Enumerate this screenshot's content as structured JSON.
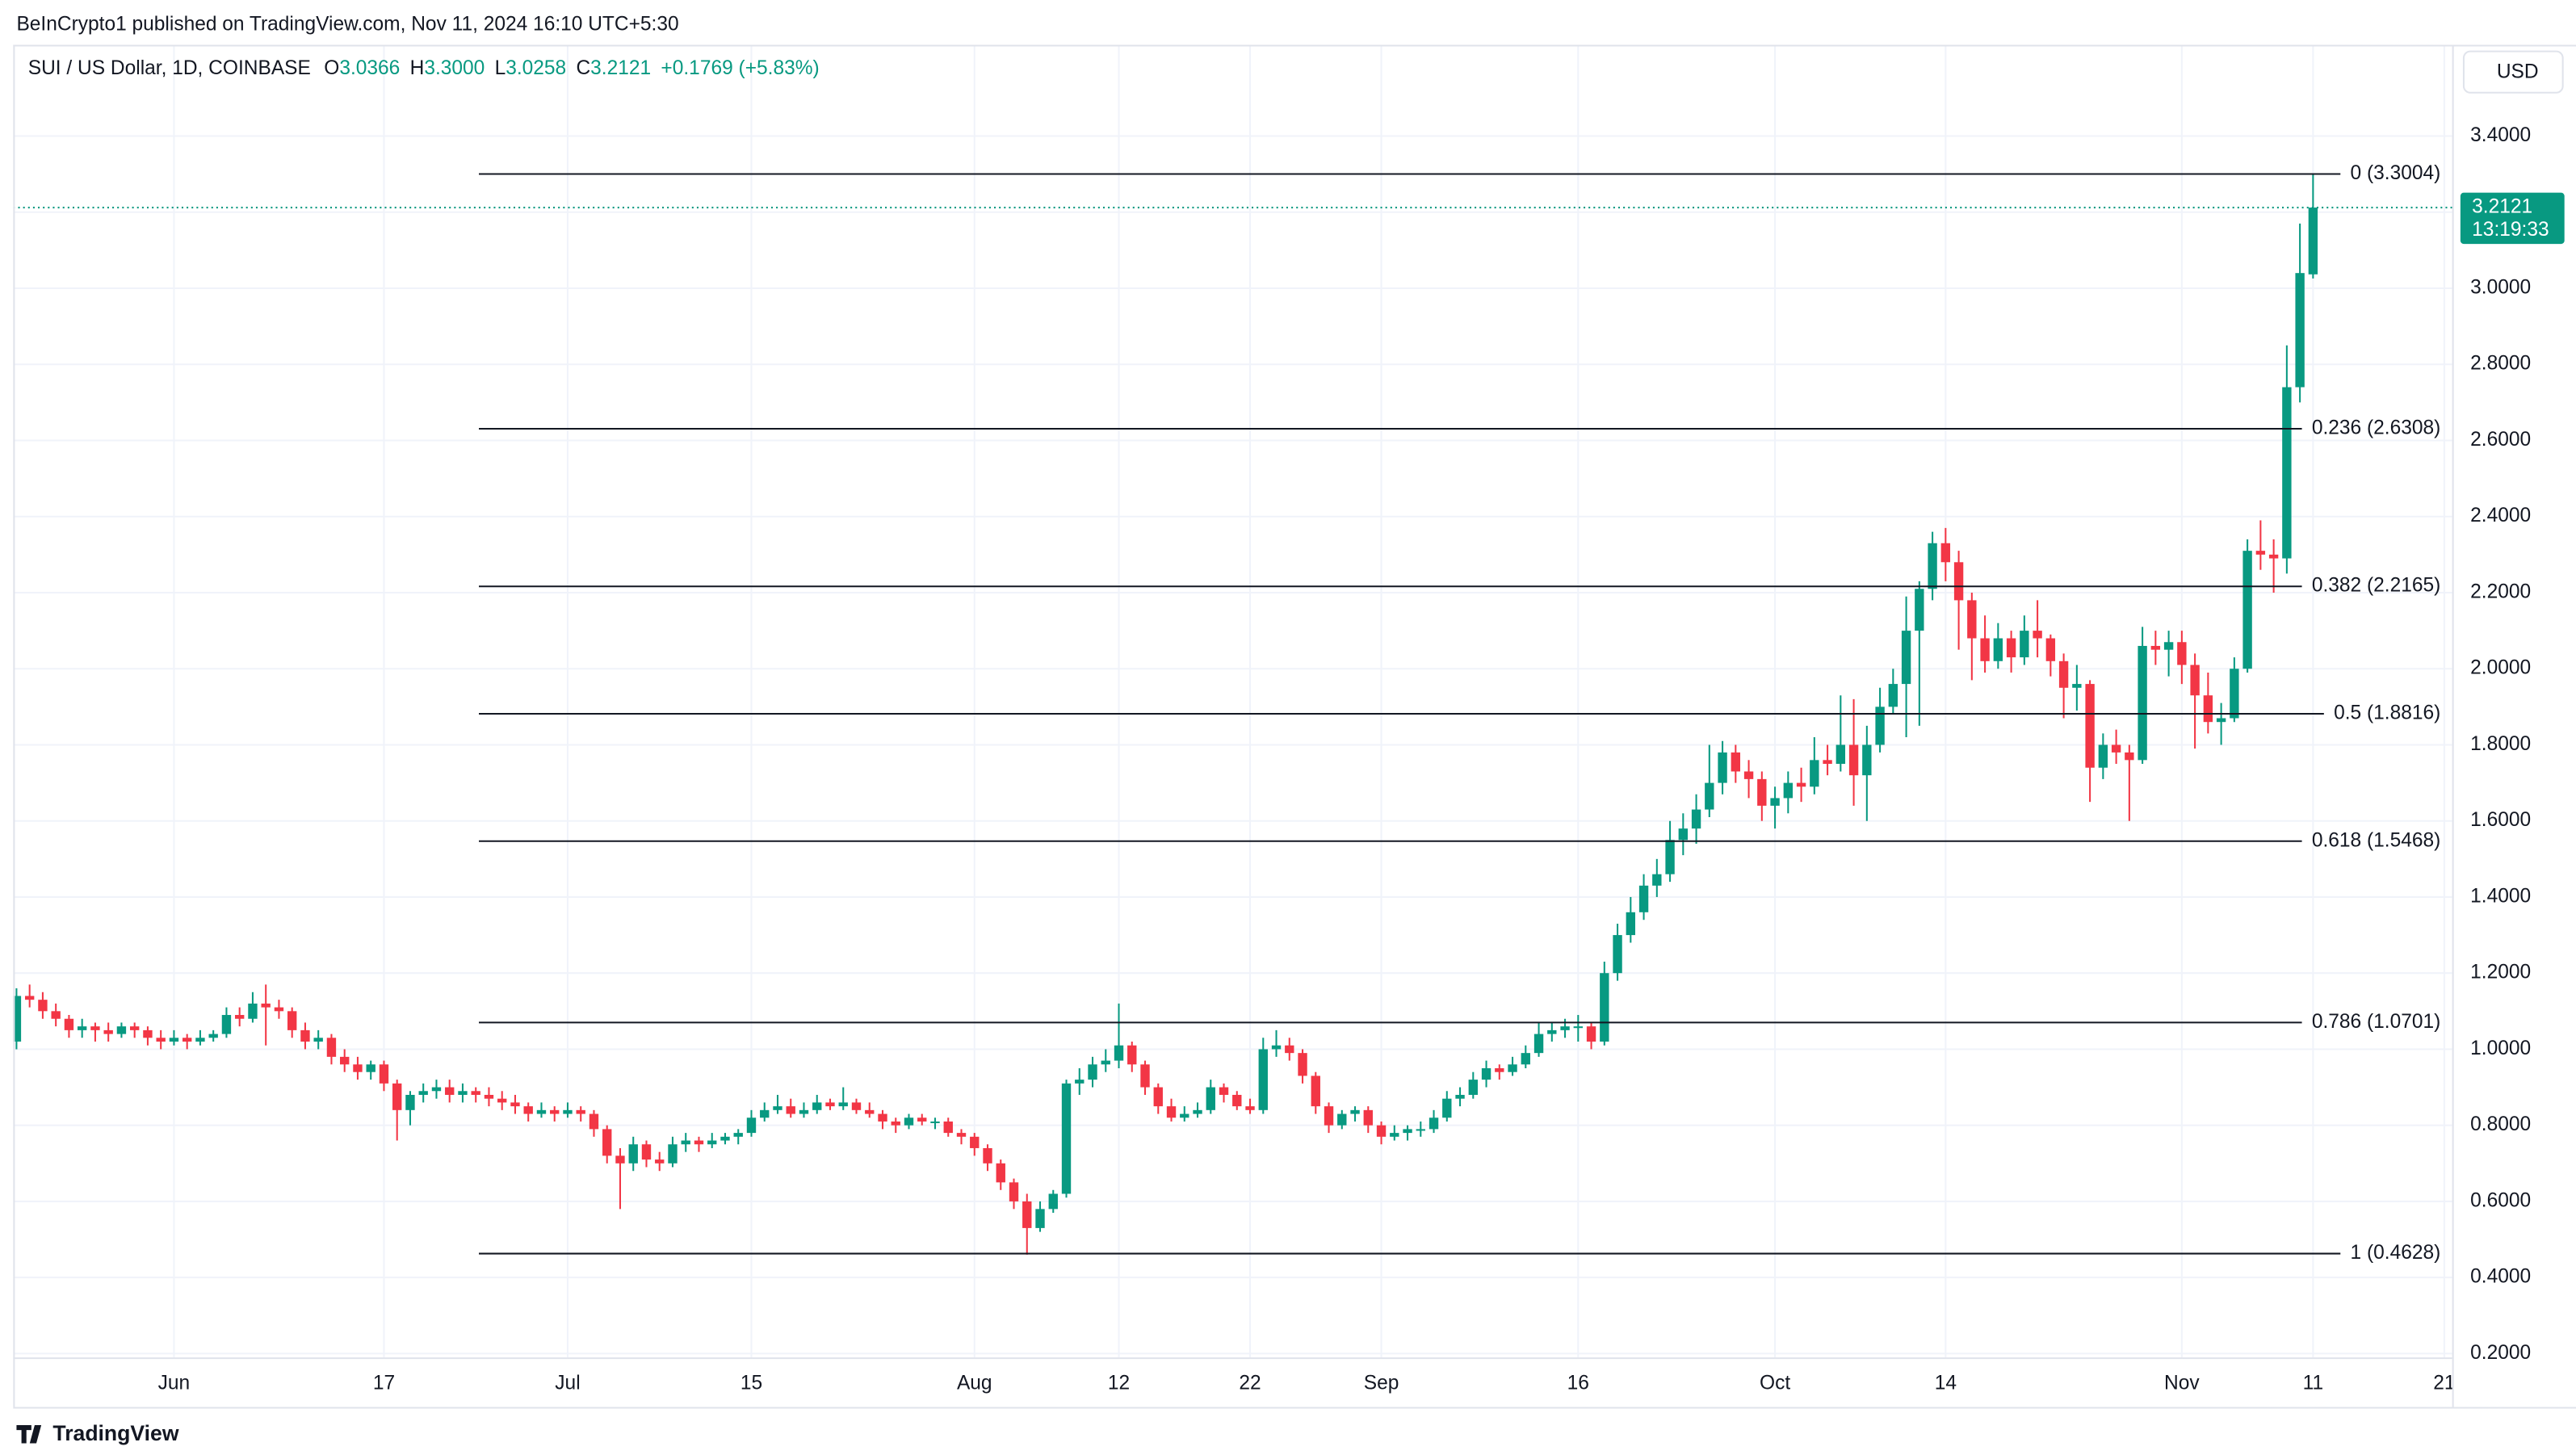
{
  "published": "BeInCrypto1 published on TradingView.com, Nov 11, 2024 16:10 UTC+5:30",
  "brand": "TradingView",
  "chart_data": {
    "type": "candlestick",
    "symbol": "SUI / US Dollar, 1D, COINBASE",
    "ohlc": [
      {
        "key": "O",
        "value": "3.0366"
      },
      {
        "key": "H",
        "value": "3.3000"
      },
      {
        "key": "L",
        "value": "3.0258"
      },
      {
        "key": "C",
        "value": "3.2121"
      }
    ],
    "change": "+0.1769 (+5.83%)",
    "currency": "USD",
    "last_price": {
      "value": 3.2121,
      "label": "3.2121"
    },
    "countdown": "13:19:33",
    "up_color": "#089981",
    "down_color": "#f23645",
    "grid": true,
    "xlim": [
      -0.25,
      185.6
    ],
    "xticks": [
      {
        "value": 12,
        "label": "Jun"
      },
      {
        "value": 28,
        "label": "17"
      },
      {
        "value": 42,
        "label": "Jul"
      },
      {
        "value": 56,
        "label": "15"
      },
      {
        "value": 73,
        "label": "Aug"
      },
      {
        "value": 84,
        "label": "12"
      },
      {
        "value": 94,
        "label": "22"
      },
      {
        "value": 104,
        "label": "Sep"
      },
      {
        "value": 119,
        "label": "16"
      },
      {
        "value": 134,
        "label": "Oct"
      },
      {
        "value": 147,
        "label": "14"
      },
      {
        "value": 165,
        "label": "Nov"
      },
      {
        "value": 175,
        "label": "11"
      },
      {
        "value": 185,
        "label": "21"
      }
    ],
    "ylim": [
      0.19,
      3.64
    ],
    "yticks": [
      {
        "value": 3.4,
        "label": "3.4000"
      },
      {
        "value": 3.2,
        "label": "3.2000"
      },
      {
        "value": 3.0,
        "label": "3.0000"
      },
      {
        "value": 2.8,
        "label": "2.8000"
      },
      {
        "value": 2.6,
        "label": "2.6000"
      },
      {
        "value": 2.4,
        "label": "2.4000"
      },
      {
        "value": 2.2,
        "label": "2.2000"
      },
      {
        "value": 2.0,
        "label": "2.0000"
      },
      {
        "value": 1.8,
        "label": "1.8000"
      },
      {
        "value": 1.6,
        "label": "1.6000"
      },
      {
        "value": 1.4,
        "label": "1.4000"
      },
      {
        "value": 1.2,
        "label": "1.2000"
      },
      {
        "value": 1.0,
        "label": "1.0000"
      },
      {
        "value": 0.8,
        "label": "0.8000"
      },
      {
        "value": 0.6,
        "label": "0.6000"
      },
      {
        "value": 0.4,
        "label": "0.4000"
      },
      {
        "value": 0.2,
        "label": "0.2000"
      }
    ],
    "fib_levels": [
      {
        "value": 3.3004,
        "label": "0 (3.3004)"
      },
      {
        "value": 2.6308,
        "label": "0.236 (2.6308)"
      },
      {
        "value": 2.2165,
        "label": "0.382 (2.2165)"
      },
      {
        "value": 1.8816,
        "label": "0.5 (1.8816)"
      },
      {
        "value": 1.5468,
        "label": "0.618 (1.5468)"
      },
      {
        "value": 1.0701,
        "label": "0.786 (1.0701)"
      },
      {
        "value": 0.4628,
        "label": "1 (0.4628)"
      }
    ],
    "candles": [
      [
        1.02,
        1.16,
        1.0,
        1.14
      ],
      [
        1.14,
        1.17,
        1.11,
        1.13
      ],
      [
        1.13,
        1.15,
        1.08,
        1.1
      ],
      [
        1.1,
        1.12,
        1.06,
        1.08
      ],
      [
        1.08,
        1.09,
        1.03,
        1.05
      ],
      [
        1.05,
        1.08,
        1.03,
        1.06
      ],
      [
        1.06,
        1.07,
        1.02,
        1.05
      ],
      [
        1.05,
        1.07,
        1.02,
        1.04
      ],
      [
        1.04,
        1.07,
        1.03,
        1.06
      ],
      [
        1.06,
        1.07,
        1.03,
        1.05
      ],
      [
        1.05,
        1.06,
        1.01,
        1.03
      ],
      [
        1.03,
        1.05,
        1.0,
        1.02
      ],
      [
        1.02,
        1.05,
        1.01,
        1.03
      ],
      [
        1.03,
        1.04,
        1.0,
        1.02
      ],
      [
        1.02,
        1.05,
        1.01,
        1.03
      ],
      [
        1.03,
        1.05,
        1.02,
        1.04
      ],
      [
        1.04,
        1.11,
        1.03,
        1.09
      ],
      [
        1.09,
        1.11,
        1.06,
        1.08
      ],
      [
        1.08,
        1.15,
        1.07,
        1.12
      ],
      [
        1.12,
        1.17,
        1.01,
        1.11
      ],
      [
        1.11,
        1.13,
        1.08,
        1.1
      ],
      [
        1.1,
        1.11,
        1.03,
        1.05
      ],
      [
        1.05,
        1.07,
        1.0,
        1.02
      ],
      [
        1.02,
        1.05,
        1.0,
        1.03
      ],
      [
        1.03,
        1.04,
        0.96,
        0.98
      ],
      [
        0.98,
        1.0,
        0.94,
        0.96
      ],
      [
        0.96,
        0.98,
        0.92,
        0.94
      ],
      [
        0.94,
        0.97,
        0.92,
        0.96
      ],
      [
        0.96,
        0.97,
        0.89,
        0.91
      ],
      [
        0.91,
        0.92,
        0.76,
        0.84
      ],
      [
        0.84,
        0.89,
        0.8,
        0.88
      ],
      [
        0.88,
        0.91,
        0.86,
        0.89
      ],
      [
        0.89,
        0.92,
        0.87,
        0.9
      ],
      [
        0.9,
        0.92,
        0.86,
        0.88
      ],
      [
        0.88,
        0.91,
        0.86,
        0.89
      ],
      [
        0.89,
        0.9,
        0.86,
        0.88
      ],
      [
        0.88,
        0.9,
        0.85,
        0.87
      ],
      [
        0.87,
        0.89,
        0.84,
        0.86
      ],
      [
        0.86,
        0.88,
        0.83,
        0.85
      ],
      [
        0.85,
        0.86,
        0.81,
        0.83
      ],
      [
        0.83,
        0.86,
        0.82,
        0.84
      ],
      [
        0.84,
        0.85,
        0.81,
        0.83
      ],
      [
        0.83,
        0.86,
        0.82,
        0.84
      ],
      [
        0.84,
        0.85,
        0.81,
        0.83
      ],
      [
        0.83,
        0.84,
        0.77,
        0.79
      ],
      [
        0.79,
        0.8,
        0.7,
        0.72
      ],
      [
        0.72,
        0.74,
        0.58,
        0.7
      ],
      [
        0.7,
        0.77,
        0.68,
        0.75
      ],
      [
        0.75,
        0.76,
        0.69,
        0.71
      ],
      [
        0.71,
        0.73,
        0.68,
        0.7
      ],
      [
        0.7,
        0.77,
        0.69,
        0.75
      ],
      [
        0.75,
        0.78,
        0.73,
        0.76
      ],
      [
        0.76,
        0.77,
        0.73,
        0.75
      ],
      [
        0.75,
        0.78,
        0.74,
        0.76
      ],
      [
        0.76,
        0.78,
        0.75,
        0.77
      ],
      [
        0.77,
        0.79,
        0.75,
        0.78
      ],
      [
        0.78,
        0.84,
        0.77,
        0.82
      ],
      [
        0.82,
        0.86,
        0.81,
        0.84
      ],
      [
        0.84,
        0.88,
        0.83,
        0.85
      ],
      [
        0.85,
        0.87,
        0.82,
        0.83
      ],
      [
        0.83,
        0.86,
        0.82,
        0.84
      ],
      [
        0.84,
        0.88,
        0.83,
        0.86
      ],
      [
        0.86,
        0.87,
        0.84,
        0.85
      ],
      [
        0.85,
        0.9,
        0.84,
        0.86
      ],
      [
        0.86,
        0.87,
        0.83,
        0.84
      ],
      [
        0.84,
        0.86,
        0.82,
        0.83
      ],
      [
        0.83,
        0.84,
        0.79,
        0.81
      ],
      [
        0.81,
        0.82,
        0.78,
        0.8
      ],
      [
        0.8,
        0.83,
        0.79,
        0.82
      ],
      [
        0.82,
        0.83,
        0.8,
        0.81
      ],
      [
        0.81,
        0.82,
        0.79,
        0.81
      ],
      [
        0.81,
        0.82,
        0.77,
        0.78
      ],
      [
        0.78,
        0.79,
        0.75,
        0.77
      ],
      [
        0.77,
        0.78,
        0.72,
        0.74
      ],
      [
        0.74,
        0.75,
        0.68,
        0.7
      ],
      [
        0.7,
        0.71,
        0.63,
        0.65
      ],
      [
        0.65,
        0.66,
        0.58,
        0.6
      ],
      [
        0.6,
        0.62,
        0.46,
        0.53
      ],
      [
        0.53,
        0.6,
        0.52,
        0.58
      ],
      [
        0.58,
        0.63,
        0.57,
        0.62
      ],
      [
        0.62,
        0.92,
        0.61,
        0.91
      ],
      [
        0.91,
        0.95,
        0.88,
        0.92
      ],
      [
        0.92,
        0.98,
        0.9,
        0.96
      ],
      [
        0.96,
        1.0,
        0.94,
        0.97
      ],
      [
        0.97,
        1.12,
        0.95,
        1.01
      ],
      [
        1.01,
        1.02,
        0.94,
        0.96
      ],
      [
        0.96,
        0.97,
        0.88,
        0.9
      ],
      [
        0.9,
        0.91,
        0.83,
        0.85
      ],
      [
        0.85,
        0.87,
        0.81,
        0.82
      ],
      [
        0.82,
        0.85,
        0.81,
        0.83
      ],
      [
        0.83,
        0.86,
        0.82,
        0.84
      ],
      [
        0.84,
        0.92,
        0.83,
        0.9
      ],
      [
        0.9,
        0.91,
        0.86,
        0.88
      ],
      [
        0.88,
        0.89,
        0.84,
        0.85
      ],
      [
        0.85,
        0.87,
        0.83,
        0.84
      ],
      [
        0.84,
        1.03,
        0.83,
        1.0
      ],
      [
        1.0,
        1.05,
        0.98,
        1.01
      ],
      [
        1.01,
        1.03,
        0.97,
        0.99
      ],
      [
        0.99,
        1.0,
        0.91,
        0.93
      ],
      [
        0.93,
        0.94,
        0.83,
        0.85
      ],
      [
        0.85,
        0.86,
        0.78,
        0.8
      ],
      [
        0.8,
        0.84,
        0.79,
        0.83
      ],
      [
        0.83,
        0.85,
        0.81,
        0.84
      ],
      [
        0.84,
        0.85,
        0.78,
        0.8
      ],
      [
        0.8,
        0.81,
        0.75,
        0.77
      ],
      [
        0.77,
        0.8,
        0.76,
        0.78
      ],
      [
        0.78,
        0.8,
        0.76,
        0.79
      ],
      [
        0.79,
        0.81,
        0.77,
        0.79
      ],
      [
        0.79,
        0.84,
        0.78,
        0.82
      ],
      [
        0.82,
        0.89,
        0.81,
        0.87
      ],
      [
        0.87,
        0.9,
        0.85,
        0.88
      ],
      [
        0.88,
        0.94,
        0.87,
        0.92
      ],
      [
        0.92,
        0.97,
        0.9,
        0.95
      ],
      [
        0.95,
        0.96,
        0.92,
        0.94
      ],
      [
        0.94,
        0.98,
        0.93,
        0.96
      ],
      [
        0.96,
        1.01,
        0.95,
        0.99
      ],
      [
        0.99,
        1.07,
        0.98,
        1.04
      ],
      [
        1.04,
        1.07,
        1.02,
        1.05
      ],
      [
        1.05,
        1.08,
        1.03,
        1.06
      ],
      [
        1.06,
        1.09,
        1.02,
        1.06
      ],
      [
        1.06,
        1.07,
        1.0,
        1.02
      ],
      [
        1.02,
        1.23,
        1.01,
        1.2
      ],
      [
        1.2,
        1.33,
        1.18,
        1.3
      ],
      [
        1.3,
        1.4,
        1.28,
        1.36
      ],
      [
        1.36,
        1.46,
        1.34,
        1.43
      ],
      [
        1.43,
        1.5,
        1.4,
        1.46
      ],
      [
        1.46,
        1.6,
        1.44,
        1.55
      ],
      [
        1.55,
        1.62,
        1.51,
        1.58
      ],
      [
        1.58,
        1.67,
        1.54,
        1.63
      ],
      [
        1.63,
        1.8,
        1.61,
        1.7
      ],
      [
        1.7,
        1.81,
        1.67,
        1.78
      ],
      [
        1.78,
        1.8,
        1.7,
        1.73
      ],
      [
        1.73,
        1.76,
        1.66,
        1.71
      ],
      [
        1.71,
        1.73,
        1.6,
        1.64
      ],
      [
        1.64,
        1.69,
        1.58,
        1.66
      ],
      [
        1.66,
        1.73,
        1.62,
        1.7
      ],
      [
        1.7,
        1.74,
        1.65,
        1.69
      ],
      [
        1.69,
        1.82,
        1.67,
        1.76
      ],
      [
        1.76,
        1.8,
        1.72,
        1.75
      ],
      [
        1.75,
        1.93,
        1.73,
        1.8
      ],
      [
        1.8,
        1.92,
        1.64,
        1.72
      ],
      [
        1.72,
        1.85,
        1.6,
        1.8
      ],
      [
        1.8,
        1.95,
        1.78,
        1.9
      ],
      [
        1.9,
        2.0,
        1.88,
        1.96
      ],
      [
        1.96,
        2.19,
        1.82,
        2.1
      ],
      [
        2.1,
        2.23,
        1.85,
        2.21
      ],
      [
        2.21,
        2.36,
        2.18,
        2.33
      ],
      [
        2.33,
        2.37,
        2.23,
        2.28
      ],
      [
        2.28,
        2.31,
        2.05,
        2.18
      ],
      [
        2.18,
        2.2,
        1.97,
        2.08
      ],
      [
        2.08,
        2.14,
        1.99,
        2.02
      ],
      [
        2.02,
        2.12,
        2.0,
        2.08
      ],
      [
        2.08,
        2.1,
        1.99,
        2.03
      ],
      [
        2.03,
        2.14,
        2.01,
        2.1
      ],
      [
        2.1,
        2.18,
        2.03,
        2.08
      ],
      [
        2.08,
        2.09,
        1.98,
        2.02
      ],
      [
        2.02,
        2.04,
        1.87,
        1.95
      ],
      [
        1.95,
        2.01,
        1.89,
        1.96
      ],
      [
        1.96,
        1.97,
        1.65,
        1.74
      ],
      [
        1.74,
        1.83,
        1.71,
        1.8
      ],
      [
        1.8,
        1.84,
        1.75,
        1.78
      ],
      [
        1.78,
        1.8,
        1.6,
        1.76
      ],
      [
        1.76,
        2.11,
        1.75,
        2.06
      ],
      [
        2.06,
        2.1,
        2.01,
        2.05
      ],
      [
        2.05,
        2.1,
        1.98,
        2.07
      ],
      [
        2.07,
        2.1,
        1.96,
        2.01
      ],
      [
        2.01,
        2.04,
        1.79,
        1.93
      ],
      [
        1.93,
        1.99,
        1.83,
        1.86
      ],
      [
        1.86,
        1.91,
        1.8,
        1.87
      ],
      [
        1.87,
        2.03,
        1.86,
        2.0
      ],
      [
        2.0,
        2.34,
        1.99,
        2.31
      ],
      [
        2.31,
        2.39,
        2.26,
        2.3
      ],
      [
        2.3,
        2.34,
        2.2,
        2.29
      ],
      [
        2.29,
        2.85,
        2.25,
        2.74
      ],
      [
        2.74,
        3.17,
        2.7,
        3.04
      ],
      [
        3.0366,
        3.3,
        3.0258,
        3.2121
      ]
    ]
  }
}
